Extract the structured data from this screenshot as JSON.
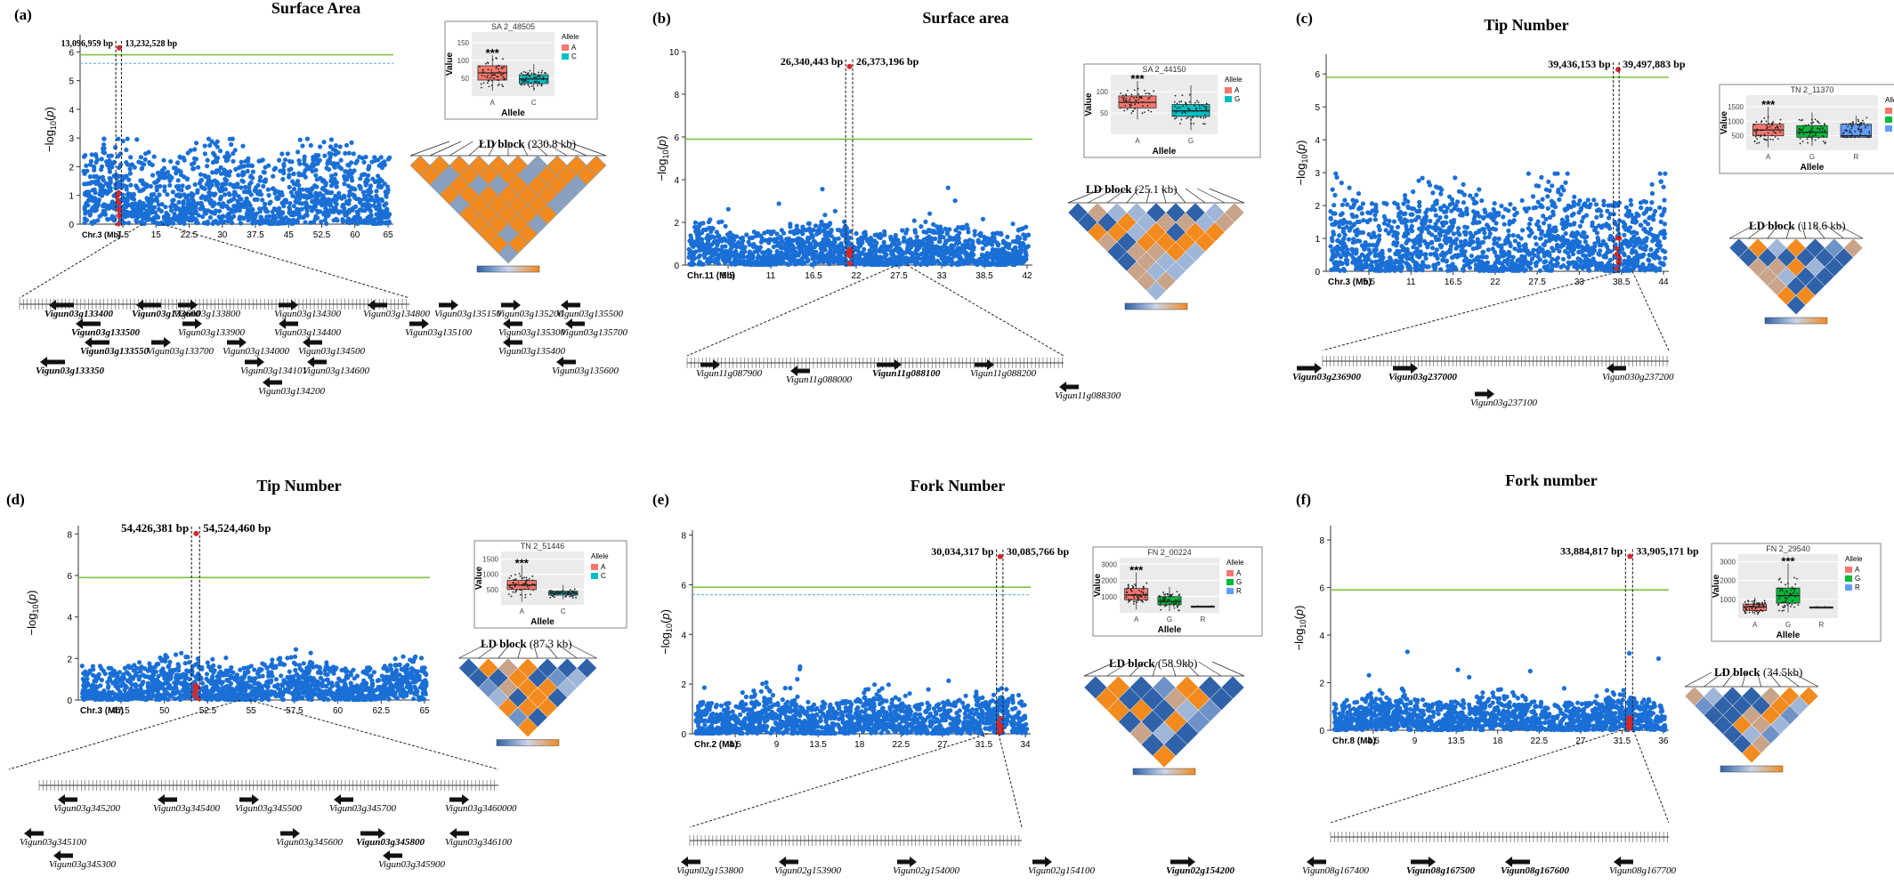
{
  "panels": [
    {
      "id": "a",
      "letter": "(a)",
      "title": "Surface Area",
      "chr_label": "Chr.3 (Mb)",
      "x_ticks": [
        "7.5",
        "15",
        "22.5",
        "30",
        "37.5",
        "45",
        "52.5",
        "60",
        "65"
      ],
      "y_ticks": [
        "0",
        "1",
        "2",
        "3",
        "4",
        "5",
        "6"
      ],
      "y_max": 6.6,
      "bp_left": "13,096,959 bp",
      "bp_right": "13,232,528 bp",
      "box_title": "SA 2_48505",
      "box_y_ticks": [
        "50",
        "100",
        "150"
      ],
      "box_y_max": 180,
      "box_alleles": [
        {
          "name": "A",
          "color": "#f8766d",
          "q1": 45,
          "med": 65,
          "q3": 85,
          "lo": 15,
          "hi": 115,
          "stars": "***"
        },
        {
          "name": "C",
          "color": "#00bfc4",
          "q1": 35,
          "med": 48,
          "q3": 60,
          "lo": 15,
          "hi": 90,
          "stars": ""
        }
      ],
      "box_ylabel": "Value",
      "box_xlabel": "Allele",
      "legend_title": "Allele",
      "ld_label": "LD block",
      "ld_size": "(230.8 kb)",
      "genes": [
        {
          "name": "Vigun03g133400",
          "dir": "left",
          "bold": true
        },
        {
          "name": "Vigun03g133600",
          "dir": "left",
          "bold": true
        },
        {
          "name": "Vigun03g133800",
          "dir": "right",
          "bold": false
        },
        {
          "name": "Vigun03g134300",
          "dir": "right",
          "bold": false
        },
        {
          "name": "Vigun03g134800",
          "dir": "left",
          "bold": false
        },
        {
          "name": "Vigun03g135150",
          "dir": "right",
          "bold": false
        },
        {
          "name": "Vigun03g135200",
          "dir": "right",
          "bold": false
        },
        {
          "name": "Vigun03g135500",
          "dir": "left",
          "bold": false
        },
        {
          "name": "Vigun03g133500",
          "dir": "left",
          "bold": true
        },
        {
          "name": "Vigun03g133900",
          "dir": "right",
          "bold": false
        },
        {
          "name": "Vigun03g134400",
          "dir": "left",
          "bold": false
        },
        {
          "name": "Vigun03g135100",
          "dir": "right",
          "bold": false
        },
        {
          "name": "Vigun03g135300",
          "dir": "left",
          "bold": false
        },
        {
          "name": "Vigun03g135700",
          "dir": "left",
          "bold": false
        },
        {
          "name": "Vigun03g133550",
          "dir": "left",
          "bold": true
        },
        {
          "name": "Vigun03g133700",
          "dir": "right",
          "bold": false
        },
        {
          "name": "Vigun03g134000",
          "dir": "right",
          "bold": false
        },
        {
          "name": "Vigun03g134500",
          "dir": "left",
          "bold": false
        },
        {
          "name": "Vigun03g135400",
          "dir": "left",
          "bold": false
        },
        {
          "name": "Vigun03g133350",
          "dir": "left",
          "bold": true
        },
        {
          "name": "Vigun03g134101",
          "dir": "right",
          "bold": false
        },
        {
          "name": "Vigun03g134600",
          "dir": "left",
          "bold": false
        },
        {
          "name": "Vigun03g135600",
          "dir": "left",
          "bold": false
        },
        {
          "name": "Vigun03g134200",
          "dir": "left",
          "bold": false
        }
      ]
    },
    {
      "id": "b",
      "letter": "(b)",
      "title": "Surface area",
      "chr_label": "Chr.11 (Mb)",
      "x_ticks": [
        "5.5",
        "11",
        "16.5",
        "22",
        "27.5",
        "33",
        "38.5",
        "42"
      ],
      "y_ticks": [
        "0",
        "2",
        "4",
        "6",
        "8",
        "10"
      ],
      "y_max": 10,
      "bp_left": "26,340,443 bp",
      "bp_right": "26,373,196 bp",
      "box_title": "SA 2_44150",
      "box_y_ticks": [
        "50",
        "100"
      ],
      "box_y_max": 140,
      "box_alleles": [
        {
          "name": "A",
          "color": "#f8766d",
          "q1": 62,
          "med": 75,
          "q3": 90,
          "lo": 35,
          "hi": 125,
          "stars": "***"
        },
        {
          "name": "G",
          "color": "#00bfc4",
          "q1": 42,
          "med": 55,
          "q3": 70,
          "lo": 10,
          "hi": 115,
          "stars": ""
        }
      ],
      "box_ylabel": "Value",
      "box_xlabel": "Allele",
      "legend_title": "Allele",
      "ld_label": "LD block",
      "ld_size": "(25.1 kb)",
      "genes": [
        {
          "name": "Vigun11g087900",
          "dir": "right",
          "bold": false
        },
        {
          "name": "Vigun11g088000",
          "dir": "left",
          "bold": false
        },
        {
          "name": "Vigun11g088100",
          "dir": "right",
          "bold": true
        },
        {
          "name": "Vigun11g088200",
          "dir": "right",
          "bold": false
        },
        {
          "name": "Vigun11g088300",
          "dir": "left",
          "bold": false
        }
      ]
    },
    {
      "id": "c",
      "letter": "(c)",
      "title": "Tip Number",
      "chr_label": "Chr.3 (Mb)",
      "x_ticks": [
        "5.5",
        "11",
        "16.5",
        "22",
        "27.5",
        "33",
        "38.5",
        "44"
      ],
      "y_ticks": [
        "0",
        "1",
        "2",
        "3",
        "4",
        "5",
        "6"
      ],
      "y_max": 6.6,
      "bp_left": "39,436,153 bp",
      "bp_right": "39,497,883 bp",
      "box_title": "TN 2_11370",
      "box_y_ticks": [
        "500",
        "1000",
        "1500"
      ],
      "box_y_max": 1900,
      "box_alleles": [
        {
          "name": "A",
          "color": "#f8766d",
          "q1": 500,
          "med": 700,
          "q3": 900,
          "lo": 100,
          "hi": 1500,
          "stars": "***"
        },
        {
          "name": "G",
          "color": "#00ba38",
          "q1": 450,
          "med": 620,
          "q3": 850,
          "lo": 150,
          "hi": 1300,
          "stars": ""
        },
        {
          "name": "R",
          "color": "#619cff",
          "q1": 450,
          "med": 500,
          "q3": 900,
          "lo": 450,
          "hi": 1200,
          "stars": ""
        }
      ],
      "box_ylabel": "Value",
      "box_xlabel": "Allele",
      "legend_title": "Allele",
      "ld_label": "LD block",
      "ld_size": "(118.6 kb)",
      "genes": [
        {
          "name": "Vigun03g236900",
          "dir": "right",
          "bold": true
        },
        {
          "name": "Vigun03g237000",
          "dir": "right",
          "bold": true
        },
        {
          "name": "Vigun030g237200",
          "dir": "left",
          "bold": false
        },
        {
          "name": "Vigun03g237100",
          "dir": "right",
          "bold": false
        }
      ]
    },
    {
      "id": "d",
      "letter": "(d)",
      "title": "Tip Number",
      "chr_label": "Chr.3 (Mb)",
      "x_ticks": [
        "47.5",
        "50",
        "52.5",
        "55",
        "57.5",
        "60",
        "62.5",
        "65"
      ],
      "y_ticks": [
        "0",
        "2",
        "4",
        "6",
        "8"
      ],
      "y_max": 8.4,
      "bp_left": "54,426,381 bp",
      "bp_right": "54,524,460 bp",
      "box_title": "TN 2_51446",
      "box_y_ticks": [
        "500",
        "1000",
        "1500"
      ],
      "box_y_max": 1750,
      "box_alleles": [
        {
          "name": "A",
          "color": "#f8766d",
          "q1": 500,
          "med": 650,
          "q3": 800,
          "lo": 100,
          "hi": 1300,
          "stars": "***"
        },
        {
          "name": "C",
          "color": "#00bfc4",
          "q1": 320,
          "med": 380,
          "q3": 450,
          "lo": 180,
          "hi": 650,
          "stars": ""
        }
      ],
      "box_ylabel": "Value",
      "box_xlabel": "Allele",
      "legend_title": "Allele",
      "ld_label": "LD block",
      "ld_size": "(87.3 kb)",
      "genes": [
        {
          "name": "Vigun03g345200",
          "dir": "left",
          "bold": false
        },
        {
          "name": "Vigun03g345400",
          "dir": "left",
          "bold": false
        },
        {
          "name": "Vigun03g345500",
          "dir": "right",
          "bold": false
        },
        {
          "name": "Vigun03g345700",
          "dir": "left",
          "bold": false
        },
        {
          "name": "Vigun03g3460000",
          "dir": "right",
          "bold": false
        },
        {
          "name": "Vigun03g345100",
          "dir": "left",
          "bold": false
        },
        {
          "name": "Vigun03g345600",
          "dir": "right",
          "bold": false
        },
        {
          "name": "Vigun03g345800",
          "dir": "right",
          "bold": true
        },
        {
          "name": "Vigun03g346100",
          "dir": "left",
          "bold": false
        },
        {
          "name": "Vigun03g345300",
          "dir": "left",
          "bold": false
        },
        {
          "name": "Vigun03g345900",
          "dir": "left",
          "bold": false
        }
      ]
    },
    {
      "id": "e",
      "letter": "(e)",
      "title": "Fork Number",
      "chr_label": "Chr.2 (Mb)",
      "x_ticks": [
        "4.5",
        "9",
        "13.5",
        "18",
        "22.5",
        "27",
        "31.5",
        "34"
      ],
      "y_ticks": [
        "0",
        "2",
        "4",
        "6",
        "8"
      ],
      "y_max": 8.2,
      "bp_left": "30,034,317 bp",
      "bp_right": "30,085,766  bp",
      "box_title": "FN 2_00224",
      "box_y_ticks": [
        "1000",
        "2000",
        "3000"
      ],
      "box_y_max": 3400,
      "box_alleles": [
        {
          "name": "A",
          "color": "#f8766d",
          "q1": 800,
          "med": 1100,
          "q3": 1500,
          "lo": 200,
          "hi": 2500,
          "stars": "***"
        },
        {
          "name": "G",
          "color": "#00ba38",
          "q1": 500,
          "med": 700,
          "q3": 1000,
          "lo": 100,
          "hi": 1600,
          "stars": ""
        },
        {
          "name": "R",
          "color": "#619cff",
          "q1": 350,
          "med": 380,
          "q3": 420,
          "lo": 350,
          "hi": 420,
          "stars": ""
        }
      ],
      "box_ylabel": "Value",
      "box_xlabel": "Allele",
      "legend_title": "Allele",
      "ld_label": "LD block",
      "ld_size": "(58.9kb)",
      "genes": [
        {
          "name": "Vigun02g153800",
          "dir": "left",
          "bold": false
        },
        {
          "name": "Vigun02g153900",
          "dir": "left",
          "bold": false
        },
        {
          "name": "Vigun02g154000",
          "dir": "right",
          "bold": false
        },
        {
          "name": "Vigun02g154100",
          "dir": "right",
          "bold": false
        },
        {
          "name": "Vigun02g154200",
          "dir": "right",
          "bold": true
        }
      ]
    },
    {
      "id": "f",
      "letter": "(f)",
      "title": "Fork number",
      "chr_label": "Chr.8 (Mb)",
      "x_ticks": [
        "4.5",
        "9",
        "13.5",
        "18",
        "22.5",
        "27",
        "31.5",
        "36"
      ],
      "y_ticks": [
        "0",
        "2",
        "4",
        "6",
        "8"
      ],
      "y_max": 8.6,
      "bp_left": "33,884,817 bp",
      "bp_right": "33,905,171 bp",
      "box_title": "FN 2_29540",
      "box_y_ticks": [
        "1000",
        "2000",
        "3000"
      ],
      "box_y_max": 3400,
      "box_alleles": [
        {
          "name": "A",
          "color": "#f8766d",
          "q1": 400,
          "med": 600,
          "q3": 750,
          "lo": 200,
          "hi": 1100,
          "stars": ""
        },
        {
          "name": "G",
          "color": "#00ba38",
          "q1": 800,
          "med": 1200,
          "q3": 1600,
          "lo": 300,
          "hi": 2900,
          "stars": "***"
        },
        {
          "name": "R",
          "color": "#619cff",
          "q1": 560,
          "med": 580,
          "q3": 600,
          "lo": 560,
          "hi": 600,
          "stars": ""
        }
      ],
      "box_ylabel": "Value",
      "box_xlabel": "Allele",
      "legend_title": "Allele",
      "ld_label": "LD block",
      "ld_size": "(34.5kb)",
      "genes": [
        {
          "name": "Vigun08g167400",
          "dir": "left",
          "bold": false
        },
        {
          "name": "Vigun08g167500",
          "dir": "right",
          "bold": true
        },
        {
          "name": "Vigun08g167600",
          "dir": "left",
          "bold": true
        },
        {
          "name": "Vigun08g167700",
          "dir": "left",
          "bold": false
        }
      ]
    }
  ],
  "colors": {
    "points": "#1a6fd6",
    "highlight": "#d9262d",
    "threshold": "#7fc241",
    "ld_high": "#f28a1e",
    "ld_low": "#2f62a8"
  }
}
